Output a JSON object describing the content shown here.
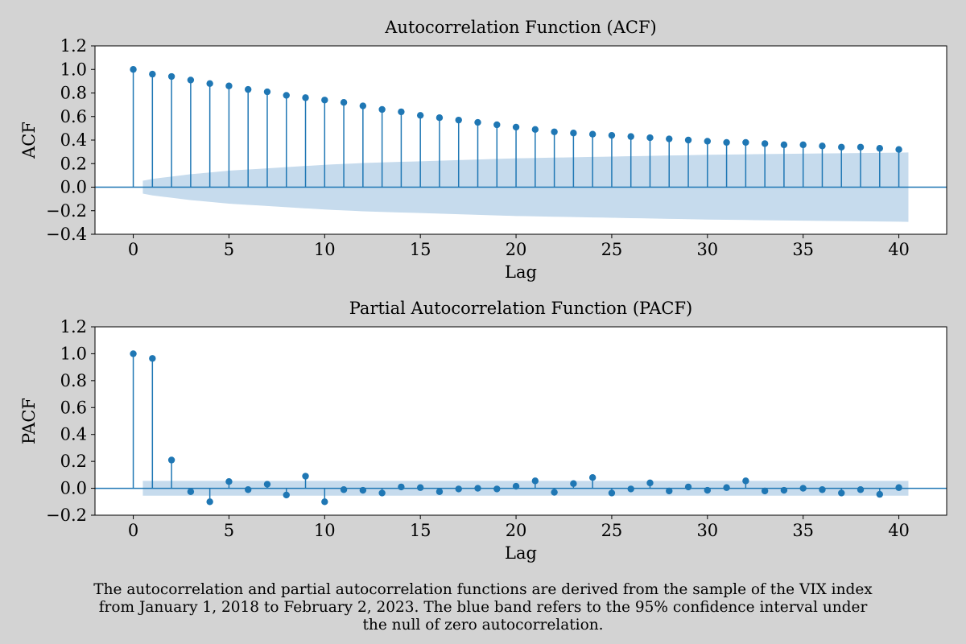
{
  "colors": {
    "background": "#d3d3d3",
    "plot_background": "#ffffff",
    "stem": "#1f77b4",
    "band": "#c6dbed",
    "zero_line": "#1f77b4"
  },
  "caption": {
    "lines": [
      "The autocorrelation and partial autocorrelation functions are derived from the sample of the VIX index",
      "from January 1, 2018 to February 2, 2023. The blue band refers to the 95% confidence interval under",
      "the null of zero autocorrelation."
    ]
  },
  "chart_data": [
    {
      "type": "stem",
      "title": "Autocorrelation Function (ACF)",
      "xlabel": "Lag",
      "ylabel": "ACF",
      "xlim": [
        -2,
        42.5
      ],
      "ylim": [
        -0.4,
        1.2
      ],
      "xticks": [
        0,
        5,
        10,
        15,
        20,
        25,
        30,
        35,
        40
      ],
      "yticks": [
        -0.4,
        -0.2,
        0.0,
        0.2,
        0.4,
        0.6,
        0.8,
        1.0,
        1.2
      ],
      "grid": false,
      "x": [
        0,
        1,
        2,
        3,
        4,
        5,
        6,
        7,
        8,
        9,
        10,
        11,
        12,
        13,
        14,
        15,
        16,
        17,
        18,
        19,
        20,
        21,
        22,
        23,
        24,
        25,
        26,
        27,
        28,
        29,
        30,
        31,
        32,
        33,
        34,
        35,
        36,
        37,
        38,
        39,
        40
      ],
      "values": [
        1.0,
        0.96,
        0.94,
        0.91,
        0.88,
        0.86,
        0.83,
        0.81,
        0.78,
        0.76,
        0.74,
        0.72,
        0.69,
        0.66,
        0.64,
        0.61,
        0.59,
        0.57,
        0.55,
        0.53,
        0.51,
        0.49,
        0.47,
        0.46,
        0.45,
        0.44,
        0.43,
        0.42,
        0.41,
        0.4,
        0.39,
        0.38,
        0.38,
        0.37,
        0.36,
        0.36,
        0.35,
        0.34,
        0.34,
        0.33,
        0.32
      ],
      "confidence_band": {
        "x_range": [
          0.5,
          40.5
        ],
        "bound_at_lag": {
          "x": [
            0.5,
            1,
            2,
            3,
            4,
            5,
            6,
            8,
            10,
            12,
            15,
            20,
            25,
            30,
            35,
            40,
            40.5
          ],
          "y": [
            0.055,
            0.07,
            0.09,
            0.11,
            0.125,
            0.14,
            0.15,
            0.17,
            0.19,
            0.205,
            0.22,
            0.245,
            0.26,
            0.275,
            0.285,
            0.293,
            0.295
          ]
        }
      }
    },
    {
      "type": "stem",
      "title": "Partial Autocorrelation Function (PACF)",
      "xlabel": "Lag",
      "ylabel": "PACF",
      "xlim": [
        -2,
        42.5
      ],
      "ylim": [
        -0.2,
        1.2
      ],
      "xticks": [
        0,
        5,
        10,
        15,
        20,
        25,
        30,
        35,
        40
      ],
      "yticks": [
        -0.2,
        0.0,
        0.2,
        0.4,
        0.6,
        0.8,
        1.0,
        1.2
      ],
      "grid": false,
      "x": [
        0,
        1,
        2,
        3,
        4,
        5,
        6,
        7,
        8,
        9,
        10,
        11,
        12,
        13,
        14,
        15,
        16,
        17,
        18,
        19,
        20,
        21,
        22,
        23,
        24,
        25,
        26,
        27,
        28,
        29,
        30,
        31,
        32,
        33,
        34,
        35,
        36,
        37,
        38,
        39,
        40
      ],
      "values": [
        1.0,
        0.965,
        0.21,
        -0.025,
        -0.1,
        0.05,
        -0.01,
        0.03,
        -0.05,
        0.09,
        -0.1,
        -0.01,
        -0.015,
        -0.035,
        0.01,
        0.005,
        -0.025,
        -0.005,
        0.0,
        -0.005,
        0.015,
        0.055,
        -0.03,
        0.035,
        0.08,
        -0.035,
        -0.005,
        0.04,
        -0.02,
        0.01,
        -0.015,
        0.005,
        0.055,
        -0.02,
        -0.015,
        0.0,
        -0.01,
        -0.035,
        -0.01,
        -0.045,
        0.005
      ],
      "confidence_band": {
        "x_range": [
          0.5,
          40.5
        ],
        "bound": 0.055
      }
    }
  ]
}
